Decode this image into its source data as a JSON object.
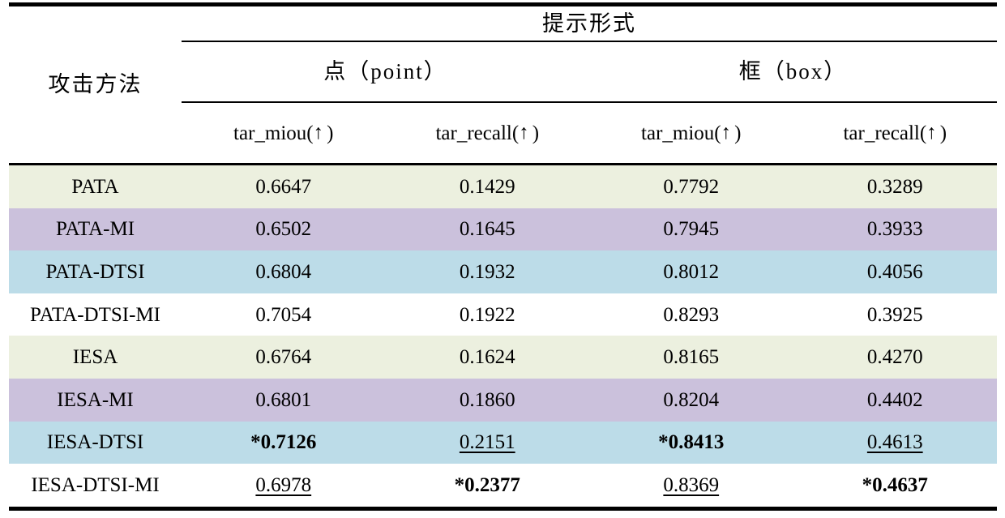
{
  "table": {
    "header": {
      "prompt_form": "提示形式",
      "attack_method": "攻击方法",
      "groups": [
        {
          "label": "点（point）"
        },
        {
          "label": "框（box）"
        }
      ],
      "metrics": [
        "tar_miou(↑ )",
        "tar_recall(↑ )",
        "tar_miou(↑ )",
        "tar_recall(↑ )"
      ]
    },
    "rows": [
      {
        "method": "PATA",
        "bg": "green",
        "values": [
          {
            "text": "0.6647",
            "style": "normal"
          },
          {
            "text": "0.1429",
            "style": "normal"
          },
          {
            "text": "0.7792",
            "style": "normal"
          },
          {
            "text": "0.3289",
            "style": "normal"
          }
        ]
      },
      {
        "method": "PATA-MI",
        "bg": "purple",
        "values": [
          {
            "text": "0.6502",
            "style": "normal"
          },
          {
            "text": "0.1645",
            "style": "normal"
          },
          {
            "text": "0.7945",
            "style": "normal"
          },
          {
            "text": "0.3933",
            "style": "normal"
          }
        ]
      },
      {
        "method": "PATA-DTSI",
        "bg": "blue",
        "values": [
          {
            "text": "0.6804",
            "style": "normal"
          },
          {
            "text": "0.1932",
            "style": "normal"
          },
          {
            "text": "0.8012",
            "style": "normal"
          },
          {
            "text": "0.4056",
            "style": "normal"
          }
        ]
      },
      {
        "method": "PATA-DTSI-MI",
        "bg": "white",
        "values": [
          {
            "text": "0.7054",
            "style": "normal"
          },
          {
            "text": "0.1922",
            "style": "normal"
          },
          {
            "text": "0.8293",
            "style": "normal"
          },
          {
            "text": "0.3925",
            "style": "normal"
          }
        ]
      },
      {
        "method": "IESA",
        "bg": "green",
        "values": [
          {
            "text": "0.6764",
            "style": "normal"
          },
          {
            "text": "0.1624",
            "style": "normal"
          },
          {
            "text": "0.8165",
            "style": "normal"
          },
          {
            "text": "0.4270",
            "style": "normal"
          }
        ]
      },
      {
        "method": "IESA-MI",
        "bg": "purple",
        "values": [
          {
            "text": "0.6801",
            "style": "normal"
          },
          {
            "text": "0.1860",
            "style": "normal"
          },
          {
            "text": "0.8204",
            "style": "normal"
          },
          {
            "text": "0.4402",
            "style": "normal"
          }
        ]
      },
      {
        "method": "IESA-DTSI",
        "bg": "blue",
        "values": [
          {
            "text": "*0.7126",
            "style": "bold"
          },
          {
            "text": "0.2151",
            "style": "underline"
          },
          {
            "text": "*0.8413",
            "style": "bold"
          },
          {
            "text": "0.4613",
            "style": "underline"
          }
        ]
      },
      {
        "method": "IESA-DTSI-MI",
        "bg": "white",
        "values": [
          {
            "text": "0.6978",
            "style": "underline"
          },
          {
            "text": "*0.2377",
            "style": "bold"
          },
          {
            "text": "0.8369",
            "style": "underline"
          },
          {
            "text": "*0.4637",
            "style": "bold"
          }
        ]
      }
    ]
  },
  "colors": {
    "row_green": "#ecf0df",
    "row_purple": "#cbc1dc",
    "row_blue": "#bcdce8",
    "row_white": "#ffffff",
    "rule_black": "#000000"
  }
}
